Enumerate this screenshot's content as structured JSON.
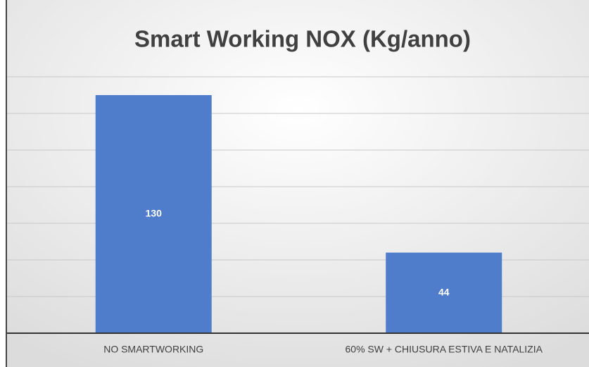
{
  "chart_data": {
    "type": "bar",
    "title": "Smart Working NOX (Kg/anno)",
    "categories": [
      "NO SMARTWORKING",
      "60% SW + CHIUSURA ESTIVA E NATALIZIA"
    ],
    "values": [
      130,
      44
    ],
    "color": "#4f7ccb",
    "ylim": [
      0,
      140
    ],
    "yticks": [
      0,
      20,
      40,
      60,
      80,
      100,
      120,
      140
    ],
    "grid": true
  }
}
